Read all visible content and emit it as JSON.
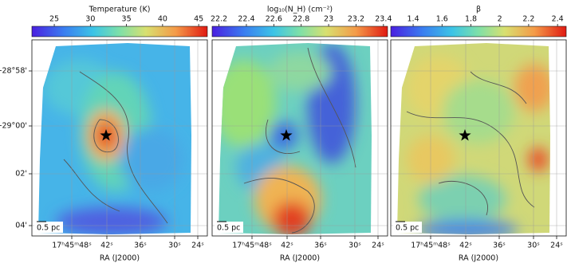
{
  "chart_data": [
    {
      "type": "heatmap",
      "colorbar_label": "Temperature (K)",
      "clim": [
        21.9,
        46.2
      ],
      "cticks": [
        25,
        30,
        35,
        40,
        45
      ],
      "ytick_labels": [
        "-28°58'",
        "-29°00'",
        "02'",
        "04'"
      ],
      "xtick_labels": [
        "17ʰ45ᵐ48ˢ",
        "42ˢ",
        "36ˢ",
        "30ˢ",
        "24ˢ"
      ],
      "xlabel": "RA (J2000)",
      "scale_bar": "0.5 pc"
    },
    {
      "type": "heatmap",
      "colorbar_label": "log₁₀(N_H) (cm⁻²)",
      "clim": [
        22.15,
        23.43
      ],
      "cticks": [
        22.2,
        22.4,
        22.6,
        22.8,
        23.0,
        23.2,
        23.4
      ],
      "xtick_labels": [
        "17ʰ45ᵐ48ˢ",
        "42ˢ",
        "36ˢ",
        "30ˢ",
        "24ˢ"
      ],
      "xlabel": "RA (J2000)",
      "scale_bar": "0.5 pc"
    },
    {
      "type": "heatmap",
      "colorbar_label": "β",
      "clim": [
        1.245,
        2.46
      ],
      "cticks": [
        1.4,
        1.6,
        1.8,
        2.0,
        2.2,
        2.4
      ],
      "xtick_labels": [
        "17ʰ45ᵐ48ˢ",
        "42ˢ",
        "36ˢ",
        "30ˢ",
        "24ˢ"
      ],
      "xlabel": "RA (J2000)",
      "scale_bar": "0.5 pc"
    }
  ]
}
